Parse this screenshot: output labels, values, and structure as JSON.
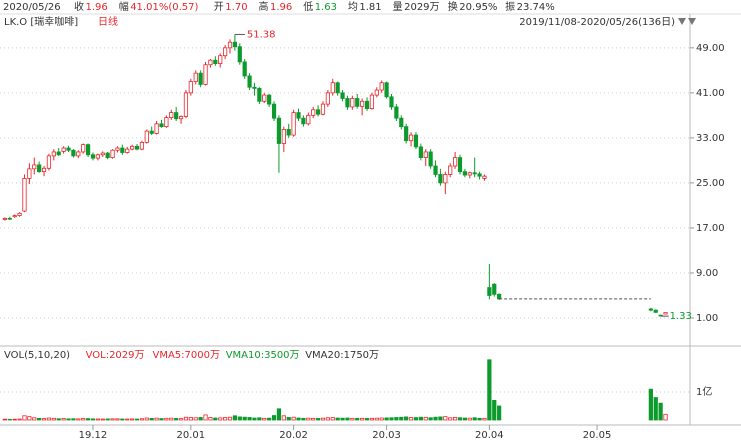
{
  "header": {
    "date": "2020/05/26",
    "items": [
      {
        "label": "收",
        "value": "1.96"
      },
      {
        "label": "幅",
        "value": "41.01%(0.57)"
      },
      {
        "label": "开",
        "value": "1.70"
      },
      {
        "label": "高",
        "value": "1.96"
      },
      {
        "label": "低",
        "value": "1.63"
      },
      {
        "label": "均",
        "value": "1.81"
      },
      {
        "label": "量",
        "value": "2029万"
      },
      {
        "label": "换",
        "value": "20.95%"
      },
      {
        "label": "振",
        "value": "23.74%"
      }
    ],
    "ticker": "LK.O [瑞幸咖啡]",
    "period": "日线",
    "range": "2019/11/08-2020/05/26(136日)"
  },
  "chart_data": {
    "type": "candlestick",
    "x": [
      0,
      1,
      2,
      3,
      4,
      5,
      6,
      7,
      8,
      9,
      10,
      11,
      12,
      13,
      14,
      15,
      16,
      17,
      18,
      19,
      20,
      21,
      22,
      23,
      24,
      25,
      26,
      27,
      28,
      29,
      30,
      31,
      32,
      33,
      34,
      35,
      36,
      37,
      38,
      39,
      40,
      41,
      42,
      43,
      44,
      45,
      46,
      47,
      48,
      49,
      50,
      51,
      52,
      53,
      54,
      55,
      56,
      57,
      58,
      59,
      60,
      61,
      62,
      63,
      64,
      65,
      66,
      67,
      68,
      69,
      70,
      71,
      72,
      73,
      74,
      75,
      76,
      77,
      78,
      79,
      80,
      81,
      82,
      83,
      84,
      85,
      86,
      87,
      88,
      89,
      90,
      91,
      92,
      93,
      94,
      95,
      96,
      97,
      98,
      99,
      100,
      101,
      132,
      133,
      134,
      135
    ],
    "open": [
      18.5,
      18.7,
      19.0,
      19.2,
      20.0,
      25.8,
      27.5,
      28.2,
      27.0,
      27.6,
      29.8,
      30.5,
      30.6,
      31.2,
      30.8,
      29.8,
      30.5,
      31.8,
      30.0,
      29.4,
      30.0,
      30.3,
      29.5,
      30.8,
      31.2,
      30.4,
      31.0,
      31.5,
      31.0,
      32.2,
      34.2,
      33.8,
      35.5,
      35.0,
      36.6,
      37.5,
      36.4,
      36.8,
      41.0,
      43.0,
      44.5,
      42.5,
      46.0,
      46.8,
      46.2,
      47.6,
      49.0,
      50.0,
      49.2,
      46.5,
      44.0,
      42.0,
      41.8,
      39.5,
      40.6,
      39.0,
      36.5,
      32.0,
      34.5,
      33.5,
      37.5,
      36.5,
      35.5,
      37.0,
      38.0,
      37.2,
      39.0,
      41.0,
      42.8,
      41.0,
      40.0,
      38.5,
      40.0,
      38.6,
      39.5,
      38.2,
      40.6,
      41.5,
      42.8,
      40.3,
      38.5,
      36.5,
      35.0,
      32.5,
      33.5,
      31.4,
      29.5,
      30.5,
      28.0,
      26.5,
      25.0,
      26.5,
      28.0,
      29.5,
      27.0,
      26.4,
      26.8,
      26.6,
      25.8,
      6.4,
      7.0,
      5.2,
      2.6,
      2.4,
      1.5,
      1.7
    ],
    "high": [
      18.9,
      19.0,
      19.4,
      19.8,
      26.5,
      28.5,
      29.5,
      28.8,
      28.0,
      30.2,
      31.0,
      31.2,
      31.5,
      31.6,
      31.0,
      30.8,
      32.0,
      32.0,
      30.4,
      30.2,
      30.6,
      30.5,
      31.0,
      31.5,
      31.8,
      31.4,
      31.8,
      31.9,
      32.5,
      34.5,
      35.0,
      36.0,
      36.2,
      37.0,
      38.0,
      38.5,
      37.0,
      41.5,
      43.5,
      45.0,
      45.0,
      46.5,
      47.0,
      47.5,
      48.0,
      49.5,
      50.5,
      51.38,
      49.8,
      47.0,
      44.5,
      42.8,
      42.0,
      41.0,
      40.8,
      39.5,
      37.0,
      35.0,
      35.5,
      38.0,
      38.2,
      37.0,
      37.5,
      38.5,
      38.8,
      39.5,
      41.5,
      43.5,
      43.0,
      41.5,
      40.5,
      40.5,
      40.8,
      40.0,
      40.2,
      41.0,
      42.0,
      43.2,
      43.0,
      40.8,
      39.0,
      37.0,
      35.5,
      34.0,
      34.0,
      32.0,
      31.0,
      31.0,
      29.0,
      27.5,
      27.0,
      28.5,
      30.5,
      30.0,
      27.5,
      27.0,
      29.5,
      27.0,
      26.5,
      10.6,
      7.2,
      5.4,
      2.8,
      2.5,
      1.6,
      1.96
    ],
    "low": [
      18.3,
      18.4,
      18.8,
      19.0,
      19.8,
      24.8,
      26.5,
      26.8,
      26.2,
      27.2,
      29.0,
      29.8,
      30.2,
      30.5,
      29.5,
      29.4,
      30.2,
      29.6,
      29.0,
      29.0,
      29.6,
      29.2,
      29.3,
      30.4,
      30.0,
      30.2,
      30.8,
      30.8,
      30.8,
      32.0,
      33.5,
      33.6,
      34.8,
      34.8,
      36.2,
      36.0,
      35.5,
      36.5,
      40.5,
      42.5,
      42.0,
      42.3,
      45.5,
      45.8,
      45.5,
      47.0,
      48.0,
      48.5,
      46.0,
      43.5,
      41.5,
      40.5,
      39.0,
      39.2,
      38.5,
      36.0,
      26.8,
      30.5,
      33.0,
      33.2,
      36.0,
      35.0,
      35.2,
      36.5,
      36.8,
      37.0,
      38.5,
      40.5,
      40.5,
      39.5,
      38.0,
      38.0,
      38.2,
      37.0,
      37.8,
      38.0,
      40.2,
      41.0,
      40.0,
      38.0,
      36.0,
      34.5,
      32.0,
      31.5,
      31.0,
      29.0,
      28.0,
      27.5,
      26.0,
      24.5,
      23.0,
      26.0,
      27.5,
      26.5,
      26.0,
      25.8,
      26.0,
      25.6,
      25.4,
      4.3,
      4.8,
      4.2,
      2.2,
      1.9,
      1.33,
      1.63
    ],
    "close": [
      18.7,
      18.6,
      19.2,
      19.6,
      25.8,
      27.5,
      28.2,
      27.0,
      27.6,
      29.8,
      30.5,
      30.0,
      31.2,
      30.8,
      29.8,
      30.5,
      31.8,
      30.0,
      29.4,
      30.0,
      30.3,
      29.5,
      30.8,
      31.2,
      30.4,
      31.0,
      31.5,
      31.0,
      32.2,
      34.2,
      33.8,
      35.5,
      35.0,
      36.6,
      37.5,
      36.4,
      36.8,
      41.0,
      43.0,
      44.5,
      42.5,
      46.0,
      46.8,
      46.2,
      47.6,
      49.0,
      50.0,
      49.2,
      46.5,
      44.0,
      42.0,
      41.8,
      39.5,
      40.6,
      39.0,
      36.5,
      32.0,
      34.5,
      33.5,
      37.5,
      36.5,
      35.5,
      37.0,
      38.0,
      37.2,
      39.0,
      41.0,
      42.8,
      41.0,
      40.0,
      38.5,
      40.0,
      38.6,
      39.5,
      38.2,
      40.6,
      41.5,
      42.8,
      40.3,
      38.5,
      36.5,
      35.0,
      32.5,
      33.5,
      31.4,
      29.5,
      30.5,
      28.0,
      26.5,
      25.0,
      26.5,
      28.0,
      29.5,
      27.0,
      26.4,
      26.8,
      26.6,
      26.2,
      26.2,
      5.0,
      5.2,
      4.39,
      2.4,
      2.0,
      1.39,
      1.96
    ],
    "volume": [
      3000000,
      2500000,
      2800000,
      3500000,
      15000000,
      12000000,
      8000000,
      6000000,
      5000000,
      7000000,
      6000000,
      4500000,
      5000000,
      4000000,
      4500000,
      4000000,
      5500000,
      5000000,
      4000000,
      3800000,
      3500000,
      3800000,
      4200000,
      4000000,
      3600000,
      3500000,
      3800000,
      3500000,
      4500000,
      7000000,
      5500000,
      6500000,
      5000000,
      6000000,
      6500000,
      5500000,
      5000000,
      10000000,
      9000000,
      8000000,
      9000000,
      18000000,
      9000000,
      7000000,
      7500000,
      9000000,
      10000000,
      15000000,
      11000000,
      10000000,
      9000000,
      7000000,
      8000000,
      6000000,
      6500000,
      16000000,
      40000000,
      15000000,
      9000000,
      10000000,
      7000000,
      6000000,
      6500000,
      6000000,
      5500000,
      6500000,
      8000000,
      8500000,
      7000000,
      6500000,
      7000000,
      6000000,
      6000000,
      6000000,
      5500000,
      6000000,
      6500000,
      7000000,
      7500000,
      8000000,
      9000000,
      9500000,
      11000000,
      9000000,
      8500000,
      10000000,
      9500000,
      8000000,
      10000000,
      11000000,
      12000000,
      8000000,
      9000000,
      8000000,
      7000000,
      6500000,
      8000000,
      6000000,
      6000000,
      215000000,
      70000000,
      50000000,
      110000000,
      80000000,
      60000000,
      20290000
    ],
    "peak_label": "51.38",
    "low_label": "1.33",
    "xlim": [
      -1,
      140
    ],
    "ylim": [
      -3.8,
      54.3
    ],
    "yticks": [
      {
        "value": 49,
        "label": "49.00"
      },
      {
        "value": 41,
        "label": "41.00"
      },
      {
        "value": 33,
        "label": "33.00"
      },
      {
        "value": 25,
        "label": "25.00"
      },
      {
        "value": 17,
        "label": "17.00"
      },
      {
        "value": 9,
        "label": "9.00"
      },
      {
        "value": 1,
        "label": "1.00"
      }
    ],
    "xticks": [
      {
        "value": 18,
        "label": "19.12"
      },
      {
        "value": 38,
        "label": "20.01"
      },
      {
        "value": 59,
        "label": "20.02"
      },
      {
        "value": 78,
        "label": "20.03"
      },
      {
        "value": 99,
        "label": "20.04"
      },
      {
        "value": 121,
        "label": "20.05"
      }
    ],
    "vlim": [
      0,
      207000000
    ],
    "vticks": [
      {
        "value": 100000000,
        "label": "1亿"
      }
    ],
    "vol_legend": [
      "VOL(5,10,20)",
      "VOL:2029万",
      "VMA5:7000万",
      "VMA10:3500万",
      "VMA20:1750万"
    ],
    "up_color": "#e8262b",
    "down_color": "#0c9a2c",
    "grid": true
  }
}
